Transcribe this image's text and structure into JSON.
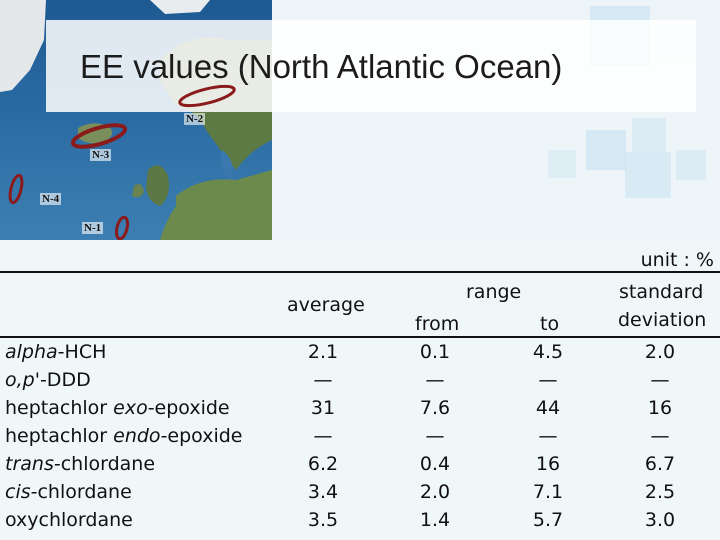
{
  "title": "EE values (North Atlantic Ocean)",
  "stations": [
    {
      "id": "N-2",
      "label": "N-2"
    },
    {
      "id": "N-3",
      "label": "N-3"
    },
    {
      "id": "N-4",
      "label": "N-4"
    },
    {
      "id": "N-1",
      "label": "N-1"
    }
  ],
  "unit": "unit : %",
  "headers": {
    "average": "average",
    "range": "range",
    "from": "from",
    "to": "to",
    "sd_line1": "standard",
    "sd_line2": "deviation"
  },
  "rows": [
    {
      "italic_prefix": "alpha",
      "name_rest": "-HCH",
      "average": "2.1",
      "from": "0.1",
      "to": "4.5",
      "sd": "2.0"
    },
    {
      "italic_prefix": "o,p'",
      "name_rest": "-DDD",
      "average": "—",
      "from": "—",
      "to": "—",
      "sd": "—"
    },
    {
      "name_pre": "heptachlor ",
      "italic_prefix": "exo",
      "name_rest": "-epoxide",
      "average": "31",
      "from": "7.6",
      "to": "44",
      "sd": "16"
    },
    {
      "name_pre": "heptachlor ",
      "italic_prefix": "endo",
      "name_rest": "-epoxide",
      "average": "—",
      "from": "—",
      "to": "—",
      "sd": "—"
    },
    {
      "italic_prefix": "trans",
      "name_rest": "-chlordane",
      "average": "6.2",
      "from": "0.4",
      "to": "16",
      "sd": "6.7"
    },
    {
      "italic_prefix": "cis",
      "name_rest": "-chlordane",
      "average": "3.4",
      "from": "2.0",
      "to": "7.1",
      "sd": "2.5"
    },
    {
      "name_pre": "oxychlordane",
      "average": "3.5",
      "from": "1.4",
      "to": "5.7",
      "sd": "3.0"
    }
  ],
  "colors": {
    "ellipse": "#8b1a1a",
    "ocean": "#2a6aa2",
    "land": "#5e7a44"
  }
}
